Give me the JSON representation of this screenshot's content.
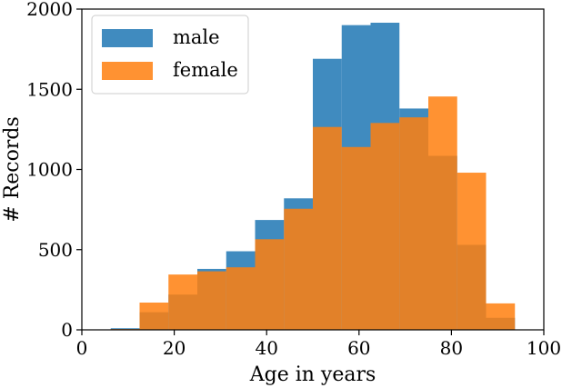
{
  "chart_data": {
    "type": "bar",
    "subtype": "overlaid-histogram",
    "xlabel": "Age in years",
    "ylabel": "# Records",
    "xlim": [
      0,
      100
    ],
    "ylim": [
      0,
      2000
    ],
    "xticks": [
      0,
      20,
      40,
      60,
      80,
      100
    ],
    "yticks": [
      0,
      500,
      1000,
      1500,
      2000
    ],
    "grid": false,
    "legend_position": "top-left",
    "bin_edges": [
      6.25,
      12.5,
      18.75,
      25,
      31.25,
      37.5,
      43.75,
      50,
      56.25,
      62.5,
      68.75,
      75,
      81.25,
      87.5,
      93.75
    ],
    "series": [
      {
        "name": "male",
        "color": "#1f77b4",
        "values": [
          10,
          110,
          220,
          380,
          490,
          685,
          820,
          1690,
          1900,
          1915,
          1380,
          1085,
          530,
          75
        ]
      },
      {
        "name": "female",
        "color": "#ff7f0e",
        "values": [
          5,
          170,
          345,
          365,
          390,
          565,
          755,
          1265,
          1140,
          1290,
          1325,
          1455,
          980,
          165
        ]
      }
    ],
    "opacity": 0.85
  }
}
